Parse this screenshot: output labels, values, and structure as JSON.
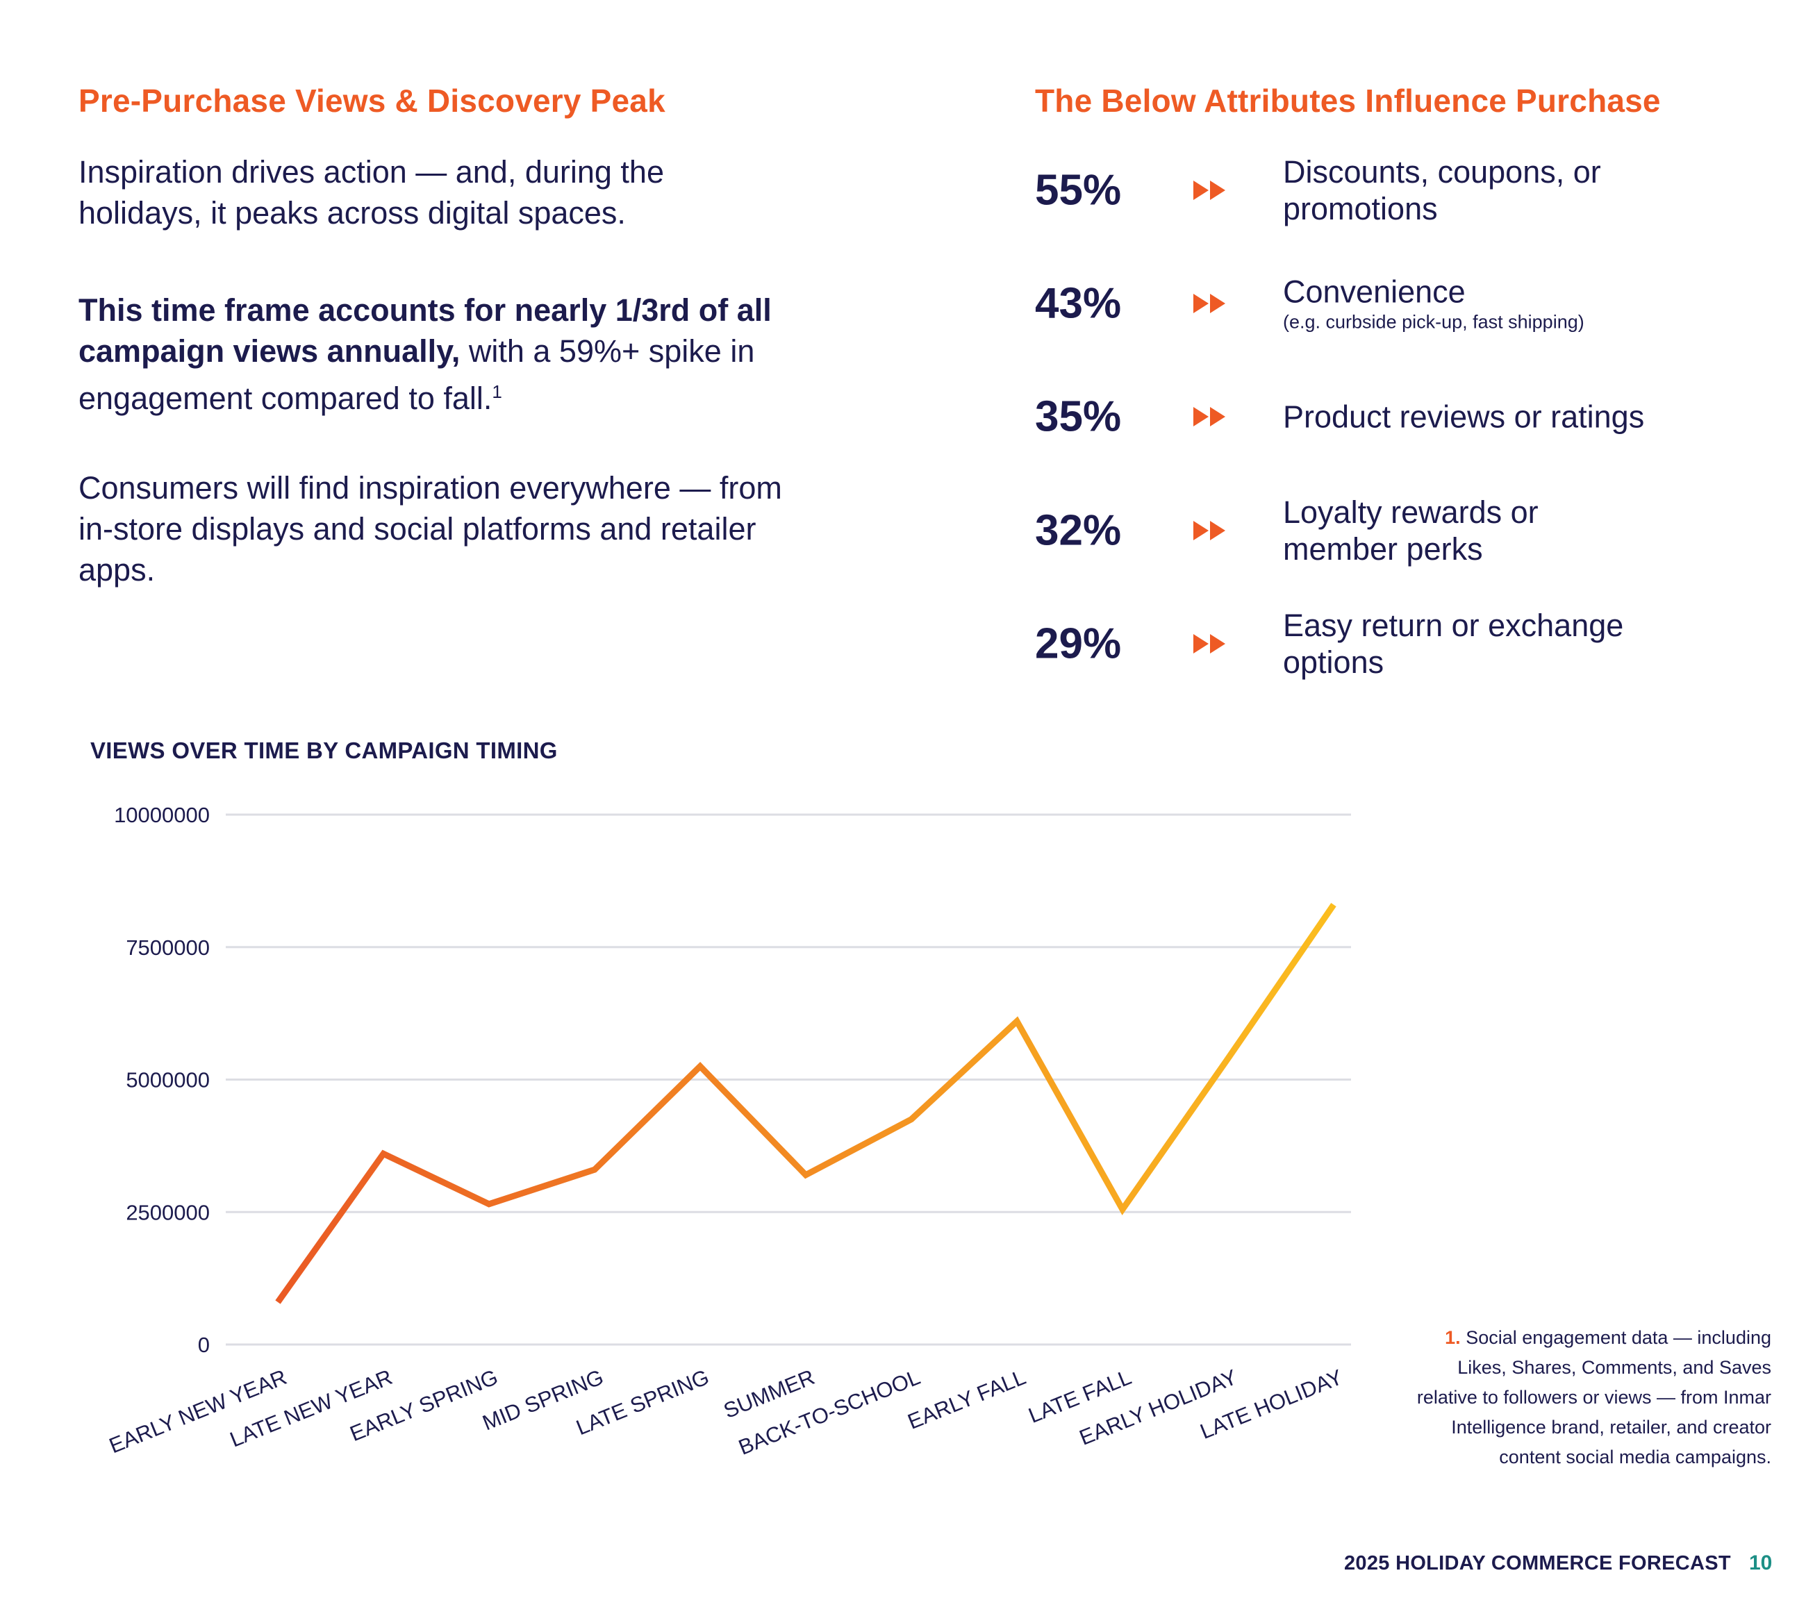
{
  "left": {
    "title": "Pre-Purchase Views & Discovery Peak",
    "para1": "Inspiration drives action — and, during the holidays, it peaks across digital spaces.",
    "para2_bold": "This time frame accounts for nearly 1/3rd of all campaign views annually,",
    "para2_rest": " with a 59%+ spike in engagement compared to fall.",
    "para2_sup": "1",
    "para3": "Consumers will find inspiration everywhere — from in-store displays and social platforms and retailer apps."
  },
  "right": {
    "title": "The Below Attributes Influence Purchase",
    "stats": [
      {
        "pct": "55%",
        "label": "Discounts, coupons, or promotions",
        "sub": ""
      },
      {
        "pct": "43%",
        "label": "Convenience",
        "sub": "(e.g. curbside pick-up, fast shipping)"
      },
      {
        "pct": "35%",
        "label": "Product reviews or ratings",
        "sub": ""
      },
      {
        "pct": "32%",
        "label": "Loyalty rewards or member perks",
        "sub": ""
      },
      {
        "pct": "29%",
        "label": "Easy return or exchange options",
        "sub": ""
      }
    ]
  },
  "colors": {
    "accent": "#ee5a24",
    "navy": "#1c1b4d",
    "line_start": "#ea5a24",
    "line_end": "#fbbd1f",
    "teal": "#1d8f86"
  },
  "chart_data": {
    "type": "line",
    "title": "VIEWS OVER TIME BY CAMPAIGN TIMING",
    "xlabel": "",
    "ylabel": "",
    "ylim": [
      0,
      10000000
    ],
    "yticks": [
      "0",
      "2500000",
      "5000000",
      "7500000",
      "10000000"
    ],
    "categories": [
      "EARLY NEW YEAR",
      "LATE NEW YEAR",
      "EARLY SPRING",
      "MID SPRING",
      "LATE SPRING",
      "SUMMER",
      "BACK-TO-SCHOOL",
      "EARLY FALL",
      "LATE FALL",
      "EARLY HOLIDAY",
      "LATE HOLIDAY"
    ],
    "series": [
      {
        "name": "Views",
        "values": [
          800000,
          3600000,
          2650000,
          3300000,
          5250000,
          3200000,
          4250000,
          6100000,
          2550000,
          5400000,
          8300000
        ]
      }
    ],
    "grid": true,
    "legend": "none"
  },
  "footnote": {
    "num": "1.",
    "text": "Social engagement data — including Likes, Shares, Comments, and Saves relative to followers or views —  from Inmar Intelligence brand, retailer, and creator content social media campaigns."
  },
  "footer": {
    "title": "2025 HOLIDAY COMMERCE FORECAST",
    "page": "10"
  }
}
